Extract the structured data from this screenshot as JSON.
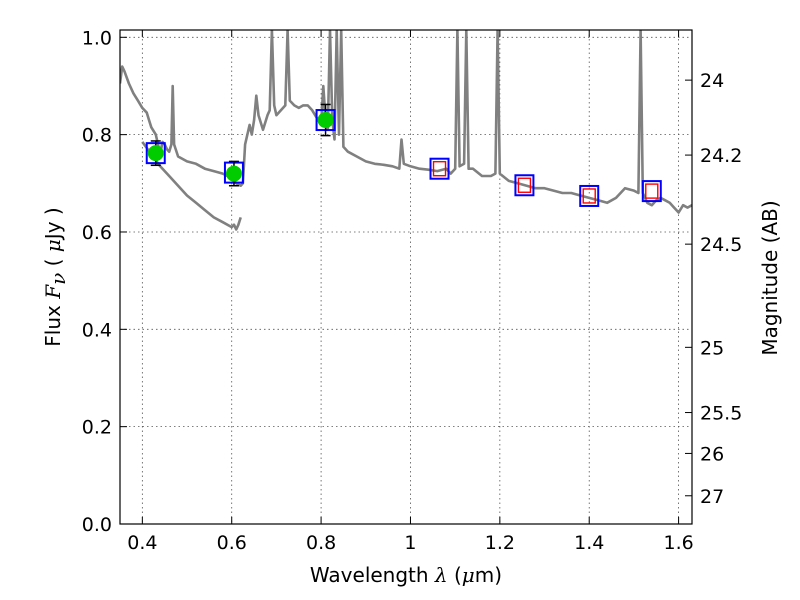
{
  "chart_data": {
    "type": "scatter",
    "title": "",
    "xlabel": {
      "pre": "Wavelength  ",
      "sym": "λ",
      "mid": " (",
      "mu": "μ",
      "post": "m)"
    },
    "ylabel": {
      "pre": "Flux  ",
      "sym": "F",
      "sub": "ν",
      "mid": "  ( ",
      "mu": "μ",
      "post": "Jy )"
    },
    "y2label": "Magnitude (AB)",
    "xlim": [
      0.35,
      1.63
    ],
    "ylim": [
      0.0,
      1.015
    ],
    "x_ticks": [
      0.4,
      0.6,
      0.8,
      1.0,
      1.2,
      1.4,
      1.6
    ],
    "x_tick_labels": [
      "0.4",
      "0.6",
      "0.8",
      "1",
      "1.2",
      "1.4",
      "1.6"
    ],
    "y_ticks": [
      0.0,
      0.2,
      0.4,
      0.6,
      0.8,
      1.0
    ],
    "y_tick_labels": [
      "0.0",
      "0.2",
      "0.4",
      "0.6",
      "0.8",
      "1.0"
    ],
    "y2_ticks": [
      {
        "label": "24",
        "flux": 0.912
      },
      {
        "label": "24.2",
        "flux": 0.758
      },
      {
        "label": "24.5",
        "flux": 0.575
      },
      {
        "label": "25",
        "flux": 0.363
      },
      {
        "label": "25.5",
        "flux": 0.229
      },
      {
        "label": "26",
        "flux": 0.145
      },
      {
        "label": "27",
        "flux": 0.058
      }
    ],
    "grid": true,
    "colors": {
      "spectrum": "#808080",
      "observed_fill": "#00cc00",
      "model_box": "#0000ff",
      "nir_box": "#ff0000",
      "errorbar": "#000000"
    },
    "series": [
      {
        "kind": "model_spectrum",
        "points": [
          [
            0.35,
            0.905
          ],
          [
            0.355,
            0.94
          ],
          [
            0.36,
            0.93
          ],
          [
            0.37,
            0.905
          ],
          [
            0.38,
            0.885
          ],
          [
            0.39,
            0.87
          ],
          [
            0.4,
            0.855
          ],
          [
            0.41,
            0.845
          ],
          [
            0.415,
            0.83
          ],
          [
            0.42,
            0.815
          ],
          [
            0.43,
            0.8
          ],
          [
            0.435,
            0.78
          ],
          [
            0.44,
            0.76
          ],
          [
            0.445,
            0.785
          ],
          [
            0.45,
            0.78
          ],
          [
            0.455,
            0.77
          ],
          [
            0.46,
            0.765
          ],
          [
            0.465,
            0.78
          ],
          [
            0.468,
            0.9
          ],
          [
            0.471,
            0.78
          ],
          [
            0.48,
            0.755
          ],
          [
            0.5,
            0.745
          ],
          [
            0.52,
            0.74
          ],
          [
            0.54,
            0.73
          ],
          [
            0.56,
            0.725
          ],
          [
            0.58,
            0.72
          ],
          [
            0.6,
            0.71
          ],
          [
            0.61,
            0.7
          ],
          [
            0.62,
            0.695
          ],
          [
            0.625,
            0.7
          ],
          [
            0.63,
            0.78
          ],
          [
            0.64,
            0.82
          ],
          [
            0.645,
            0.8
          ],
          [
            0.65,
            0.83
          ],
          [
            0.655,
            0.88
          ],
          [
            0.66,
            0.84
          ],
          [
            0.67,
            0.81
          ],
          [
            0.68,
            0.84
          ],
          [
            0.685,
            0.85
          ],
          [
            0.69,
            1.015
          ],
          [
            0.695,
            0.86
          ],
          [
            0.7,
            0.84
          ],
          [
            0.71,
            0.85
          ],
          [
            0.72,
            0.86
          ],
          [
            0.725,
            1.015
          ],
          [
            0.73,
            0.87
          ],
          [
            0.74,
            0.86
          ],
          [
            0.75,
            0.855
          ],
          [
            0.76,
            0.86
          ],
          [
            0.77,
            0.86
          ],
          [
            0.78,
            0.85
          ],
          [
            0.79,
            0.835
          ],
          [
            0.8,
            0.82
          ],
          [
            0.805,
            0.9
          ],
          [
            0.81,
            0.83
          ],
          [
            0.815,
            0.81
          ],
          [
            0.82,
            1.015
          ],
          [
            0.825,
            0.83
          ],
          [
            0.83,
            0.79
          ],
          [
            0.835,
            1.015
          ],
          [
            0.84,
            0.8
          ],
          [
            0.845,
            1.015
          ],
          [
            0.85,
            0.775
          ],
          [
            0.86,
            0.765
          ],
          [
            0.88,
            0.755
          ],
          [
            0.9,
            0.745
          ],
          [
            0.92,
            0.74
          ],
          [
            0.94,
            0.738
          ],
          [
            0.96,
            0.735
          ],
          [
            0.975,
            0.73
          ],
          [
            0.98,
            0.79
          ],
          [
            0.985,
            0.74
          ],
          [
            1.0,
            0.735
          ],
          [
            1.02,
            0.73
          ],
          [
            1.04,
            0.728
          ],
          [
            1.06,
            0.725
          ],
          [
            1.08,
            0.73
          ],
          [
            1.09,
            0.72
          ],
          [
            1.1,
            0.73
          ],
          [
            1.105,
            1.015
          ],
          [
            1.11,
            0.735
          ],
          [
            1.12,
            0.74
          ],
          [
            1.125,
            1.015
          ],
          [
            1.13,
            0.73
          ],
          [
            1.14,
            0.73
          ],
          [
            1.16,
            0.715
          ],
          [
            1.18,
            0.715
          ],
          [
            1.19,
            0.72
          ],
          [
            1.195,
            1.015
          ],
          [
            1.2,
            0.72
          ],
          [
            1.22,
            0.705
          ],
          [
            1.24,
            0.7
          ],
          [
            1.26,
            0.695
          ],
          [
            1.28,
            0.69
          ],
          [
            1.3,
            0.69
          ],
          [
            1.32,
            0.685
          ],
          [
            1.34,
            0.68
          ],
          [
            1.36,
            0.68
          ],
          [
            1.38,
            0.675
          ],
          [
            1.4,
            0.67
          ],
          [
            1.42,
            0.665
          ],
          [
            1.44,
            0.66
          ],
          [
            1.46,
            0.67
          ],
          [
            1.48,
            0.69
          ],
          [
            1.5,
            0.685
          ],
          [
            1.51,
            0.68
          ],
          [
            1.515,
            1.015
          ],
          [
            1.52,
            0.68
          ],
          [
            1.53,
            0.66
          ],
          [
            1.54,
            0.655
          ],
          [
            1.55,
            0.665
          ],
          [
            1.56,
            0.67
          ],
          [
            1.57,
            0.665
          ],
          [
            1.58,
            0.66
          ],
          [
            1.59,
            0.65
          ],
          [
            1.6,
            0.64
          ],
          [
            1.61,
            0.655
          ],
          [
            1.62,
            0.65
          ],
          [
            1.63,
            0.655
          ]
        ]
      },
      {
        "kind": "model_spectrum_lower",
        "points": [
          [
            0.4,
            0.785
          ],
          [
            0.42,
            0.76
          ],
          [
            0.44,
            0.735
          ],
          [
            0.46,
            0.715
          ],
          [
            0.48,
            0.695
          ],
          [
            0.5,
            0.675
          ],
          [
            0.52,
            0.66
          ],
          [
            0.54,
            0.645
          ],
          [
            0.56,
            0.63
          ],
          [
            0.58,
            0.62
          ],
          [
            0.6,
            0.61
          ],
          [
            0.605,
            0.615
          ],
          [
            0.61,
            0.605
          ],
          [
            0.615,
            0.615
          ],
          [
            0.62,
            0.63
          ]
        ]
      },
      {
        "kind": "observed",
        "name": "",
        "x": [
          0.43,
          0.605,
          0.81
        ],
        "y": [
          0.762,
          0.72,
          0.83
        ],
        "yerr": [
          0.025,
          0.025,
          0.032
        ]
      },
      {
        "kind": "model_box",
        "x": [
          0.43,
          0.605,
          0.81,
          1.065,
          1.255,
          1.4,
          1.54
        ],
        "y": [
          0.762,
          0.722,
          0.83,
          0.73,
          0.696,
          0.674,
          0.684
        ]
      },
      {
        "kind": "nir_model",
        "x": [
          1.065,
          1.255,
          1.4,
          1.54
        ],
        "y": [
          0.73,
          0.696,
          0.674,
          0.684
        ]
      }
    ]
  }
}
